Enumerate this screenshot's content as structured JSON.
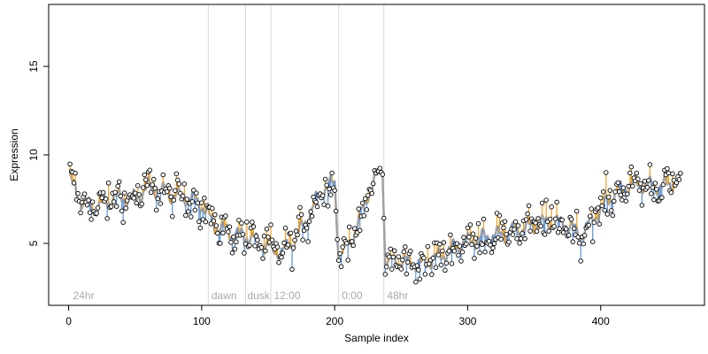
{
  "chart_data": {
    "type": "scatter",
    "title": "",
    "xlabel": "Sample index",
    "ylabel": "Expression",
    "xlim": [
      -15,
      478
    ],
    "ylim": [
      1.5,
      18.5
    ],
    "xticks": [
      0,
      100,
      200,
      300,
      400
    ],
    "yticks": [
      5,
      10,
      15
    ],
    "grid": false,
    "legend": "none",
    "colors": {
      "up": "#f0a020",
      "down": "#5b8fd6",
      "fit": "#a0a0a0",
      "phase_line": "#d9d9d9",
      "point_edge": "#000000",
      "point_fill": "#ffffff"
    },
    "phases": [
      {
        "label": "24hr",
        "x": 0,
        "label_x": 2,
        "line": false
      },
      {
        "label": "dawn",
        "x": 105,
        "label_x": 106,
        "line": true
      },
      {
        "label": "dusk",
        "x": 133,
        "label_x": 133,
        "line": true
      },
      {
        "label": "12:00",
        "x": 152,
        "label_x": 153,
        "line": true
      },
      {
        "label": "0:00",
        "x": 203,
        "label_x": 204,
        "line": true
      },
      {
        "label": "48hr",
        "x": 237,
        "label_x": 238,
        "line": true
      }
    ],
    "trend_anchors": [
      [
        1,
        8.6
      ],
      [
        10,
        7.4
      ],
      [
        20,
        7.0
      ],
      [
        35,
        7.6
      ],
      [
        50,
        7.5
      ],
      [
        60,
        8.2
      ],
      [
        75,
        7.8
      ],
      [
        90,
        7.6
      ],
      [
        100,
        7.2
      ],
      [
        110,
        6.0
      ],
      [
        125,
        5.5
      ],
      [
        135,
        5.4
      ],
      [
        148,
        4.8
      ],
      [
        160,
        4.5
      ],
      [
        170,
        5.2
      ],
      [
        180,
        6.5
      ],
      [
        190,
        8.0
      ],
      [
        200,
        8.4
      ],
      [
        203,
        4.4
      ],
      [
        212,
        5.0
      ],
      [
        225,
        7.8
      ],
      [
        236,
        9.3
      ],
      [
        238,
        4.0
      ],
      [
        250,
        4.0
      ],
      [
        265,
        3.8
      ],
      [
        280,
        4.3
      ],
      [
        295,
        5.0
      ],
      [
        310,
        5.3
      ],
      [
        330,
        5.6
      ],
      [
        345,
        5.9
      ],
      [
        360,
        6.2
      ],
      [
        375,
        6.1
      ],
      [
        385,
        5.4
      ],
      [
        395,
        6.5
      ],
      [
        410,
        7.8
      ],
      [
        425,
        8.4
      ],
      [
        440,
        8.2
      ],
      [
        450,
        8.3
      ],
      [
        462,
        8.6
      ]
    ],
    "n_points": 460,
    "x_start": 1
  }
}
